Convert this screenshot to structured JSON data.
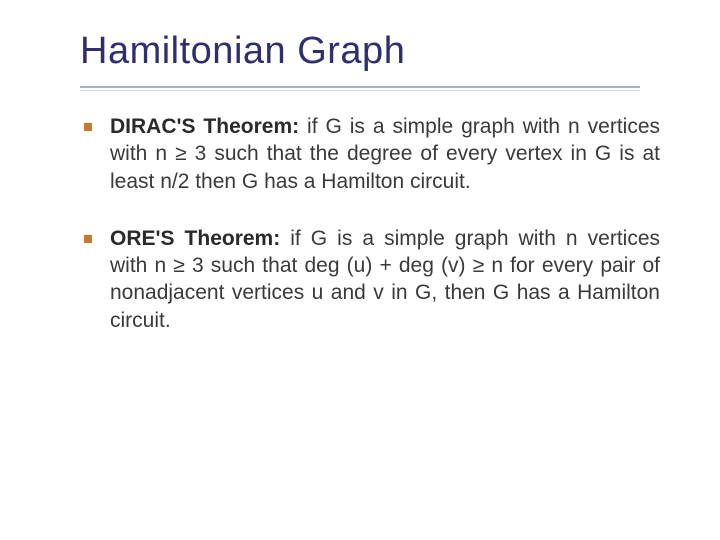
{
  "slide": {
    "title": "Hamiltonian Graph",
    "title_color": "#2f2f6f",
    "title_fontsize": 38,
    "underline_color": "#aab0c4",
    "bullet_color": "#c77a2a",
    "body_color": "#3a3a3a",
    "body_fontsize": 21,
    "background_color": "#ffffff",
    "items": [
      {
        "label": "DIRAC'S Theorem:",
        "text": " if G is a simple graph with n vertices with n ≥ 3 such that the degree of every vertex in G is at least n/2 then G has a Hamilton circuit."
      },
      {
        "label": "ORE'S Theorem:",
        "text": " if G is a simple graph with n vertices with n ≥ 3 such that deg (u) + deg (v) ≥ n for every pair of nonadjacent vertices u and v in G, then G has a Hamilton circuit."
      }
    ]
  }
}
